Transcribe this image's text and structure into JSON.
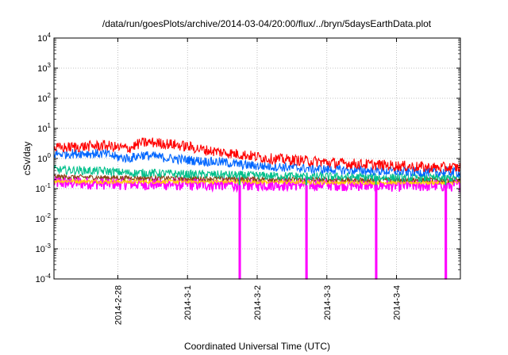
{
  "chart_data": {
    "type": "line",
    "title": "/data/run/goesPlots/archive/2014-03-04/20:00/flux/../bryn/5daysEarthData.plot",
    "xlabel": "Coordinated Universal Time (UTC)",
    "ylabel": "cSv/day",
    "yscale": "log",
    "ylim": [
      0.0001,
      10000
    ],
    "xlim": [
      "2014-02-27 02:00",
      "2014-03-04 22:00"
    ],
    "grid": true,
    "x_ticks": [
      "2014-2-28",
      "2014-3-1",
      "2014-3-2",
      "2014-3-3",
      "2014-3-4"
    ],
    "y_ticks": [
      {
        "value": 0.0001,
        "base": "10",
        "exp": "-4"
      },
      {
        "value": 0.001,
        "base": "10",
        "exp": "-3"
      },
      {
        "value": 0.01,
        "base": "10",
        "exp": "-2"
      },
      {
        "value": 0.1,
        "base": "10",
        "exp": "-1"
      },
      {
        "value": 1,
        "base": "10",
        "exp": "0"
      },
      {
        "value": 10,
        "base": "10",
        "exp": "1"
      },
      {
        "value": 100,
        "base": "10",
        "exp": "2"
      },
      {
        "value": 1000,
        "base": "10",
        "exp": "3"
      },
      {
        "value": 10000,
        "base": "10",
        "exp": "4"
      }
    ],
    "series": [
      {
        "color": "#ff0000",
        "x": [
          "2014-02-27 02:00",
          "2014-02-27 12:00",
          "2014-02-27 20:00",
          "2014-02-28 00:00",
          "2014-02-28 04:00",
          "2014-02-28 08:00",
          "2014-02-28 12:00",
          "2014-02-28 18:00",
          "2014-03-01 00:00",
          "2014-03-01 06:00",
          "2014-03-01 12:00",
          "2014-03-01 20:00",
          "2014-03-02 04:00",
          "2014-03-02 12:00",
          "2014-03-02 20:00",
          "2014-03-03 04:00",
          "2014-03-03 12:00",
          "2014-03-03 20:00",
          "2014-03-04 04:00",
          "2014-03-04 12:00",
          "2014-03-04 22:00"
        ],
        "y": [
          2.2,
          2.5,
          2.7,
          2.3,
          2.2,
          3.3,
          3.4,
          3.0,
          2.5,
          1.9,
          1.6,
          1.3,
          1.0,
          0.9,
          0.8,
          0.7,
          0.65,
          0.6,
          0.55,
          0.5,
          0.5
        ]
      },
      {
        "color": "#0066ff",
        "x": [
          "2014-02-27 02:00",
          "2014-02-27 12:00",
          "2014-02-27 20:00",
          "2014-02-28 00:00",
          "2014-02-28 04:00",
          "2014-02-28 08:00",
          "2014-02-28 12:00",
          "2014-02-28 18:00",
          "2014-03-01 00:00",
          "2014-03-01 06:00",
          "2014-03-01 12:00",
          "2014-03-01 20:00",
          "2014-03-02 04:00",
          "2014-03-02 12:00",
          "2014-03-02 20:00",
          "2014-03-03 04:00",
          "2014-03-03 12:00",
          "2014-03-03 20:00",
          "2014-03-04 04:00",
          "2014-03-04 12:00",
          "2014-03-04 22:00"
        ],
        "y": [
          1.4,
          1.5,
          1.4,
          1.1,
          1.0,
          1.3,
          1.2,
          1.0,
          0.9,
          0.8,
          0.75,
          0.6,
          0.55,
          0.5,
          0.45,
          0.42,
          0.4,
          0.38,
          0.36,
          0.35,
          0.35
        ]
      },
      {
        "color": "#00c08b",
        "x": [
          "2014-02-27 02:00",
          "2014-02-27 20:00",
          "2014-02-28 04:00",
          "2014-02-28 12:00",
          "2014-03-01 00:00",
          "2014-03-01 12:00",
          "2014-03-02 00:00",
          "2014-03-02 12:00",
          "2014-03-03 00:00",
          "2014-03-03 12:00",
          "2014-03-04 00:00",
          "2014-03-04 22:00"
        ],
        "y": [
          0.42,
          0.38,
          0.33,
          0.33,
          0.3,
          0.29,
          0.27,
          0.26,
          0.25,
          0.24,
          0.23,
          0.22
        ]
      },
      {
        "color": "#8b4513",
        "x": [
          "2014-02-27 02:00",
          "2014-02-28 00:00",
          "2014-03-01 00:00",
          "2014-03-02 00:00",
          "2014-03-03 00:00",
          "2014-03-04 00:00",
          "2014-03-04 22:00"
        ],
        "y": [
          0.25,
          0.23,
          0.22,
          0.21,
          0.2,
          0.2,
          0.19
        ]
      },
      {
        "color": "#ffd700",
        "x": [
          "2014-02-27 02:00",
          "2014-02-28 00:00",
          "2014-03-01 00:00",
          "2014-03-02 00:00",
          "2014-03-03 00:00",
          "2014-03-04 00:00",
          "2014-03-04 22:00"
        ],
        "y": [
          0.18,
          0.17,
          0.17,
          0.17,
          0.16,
          0.16,
          0.16
        ]
      },
      {
        "color": "#ff00ff",
        "x": [
          "2014-02-27 02:00",
          "2014-02-28 00:00",
          "2014-03-01 00:00",
          "2014-03-02 00:00",
          "2014-03-03 00:00",
          "2014-03-04 00:00",
          "2014-03-04 22:00"
        ],
        "y": [
          0.16,
          0.15,
          0.14,
          0.14,
          0.14,
          0.13,
          0.13
        ]
      }
    ],
    "dropouts": [
      "2014-03-01 18:00",
      "2014-03-02 17:00",
      "2014-03-03 17:00",
      "2014-03-04 17:00"
    ]
  }
}
